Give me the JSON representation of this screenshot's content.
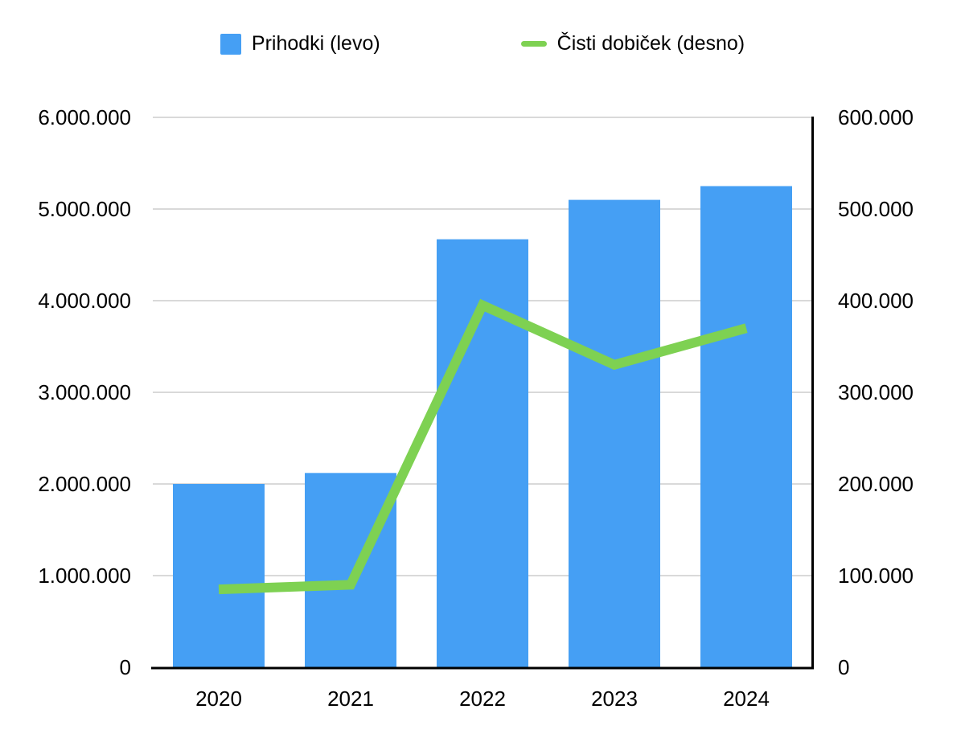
{
  "colors": {
    "bar": "#459ff4",
    "line": "#7ed152",
    "grid": "#d9d9d9",
    "axis": "#000000",
    "text": "#000000",
    "background": "#ffffff"
  },
  "legend": {
    "position": "top",
    "items": [
      {
        "label": "Prihodki (levo)",
        "marker": "square",
        "color": "#459ff4"
      },
      {
        "label": "Čisti dobiček (desno)",
        "marker": "line",
        "color": "#7ed152"
      }
    ]
  },
  "chart_data": {
    "type": "combo-bar-line",
    "categories": [
      "2020",
      "2021",
      "2022",
      "2023",
      "2024"
    ],
    "series": [
      {
        "name": "Prihodki (levo)",
        "type": "bar",
        "axis": "left",
        "color": "#459ff4",
        "values": [
          2000000,
          2120000,
          4670000,
          5100000,
          5250000
        ]
      },
      {
        "name": "Čisti dobiček (desno)",
        "type": "line",
        "axis": "right",
        "color": "#7ed152",
        "values": [
          85000,
          90000,
          395000,
          330000,
          370000
        ]
      }
    ],
    "left_axis": {
      "min": 0,
      "max": 6000000,
      "tick_step": 1000000,
      "tick_labels": [
        "0",
        "1.000.000",
        "2.000.000",
        "3.000.000",
        "4.000.000",
        "5.000.000",
        "6.000.000"
      ]
    },
    "right_axis": {
      "min": 0,
      "max": 600000,
      "tick_step": 100000,
      "tick_labels": [
        "0",
        "100.000",
        "200.000",
        "300.000",
        "400.000",
        "500.000",
        "600.000"
      ]
    },
    "x_axis": {
      "labels": [
        "2020",
        "2021",
        "2022",
        "2023",
        "2024"
      ]
    },
    "grid": true,
    "legend_position": "top",
    "title": ""
  }
}
